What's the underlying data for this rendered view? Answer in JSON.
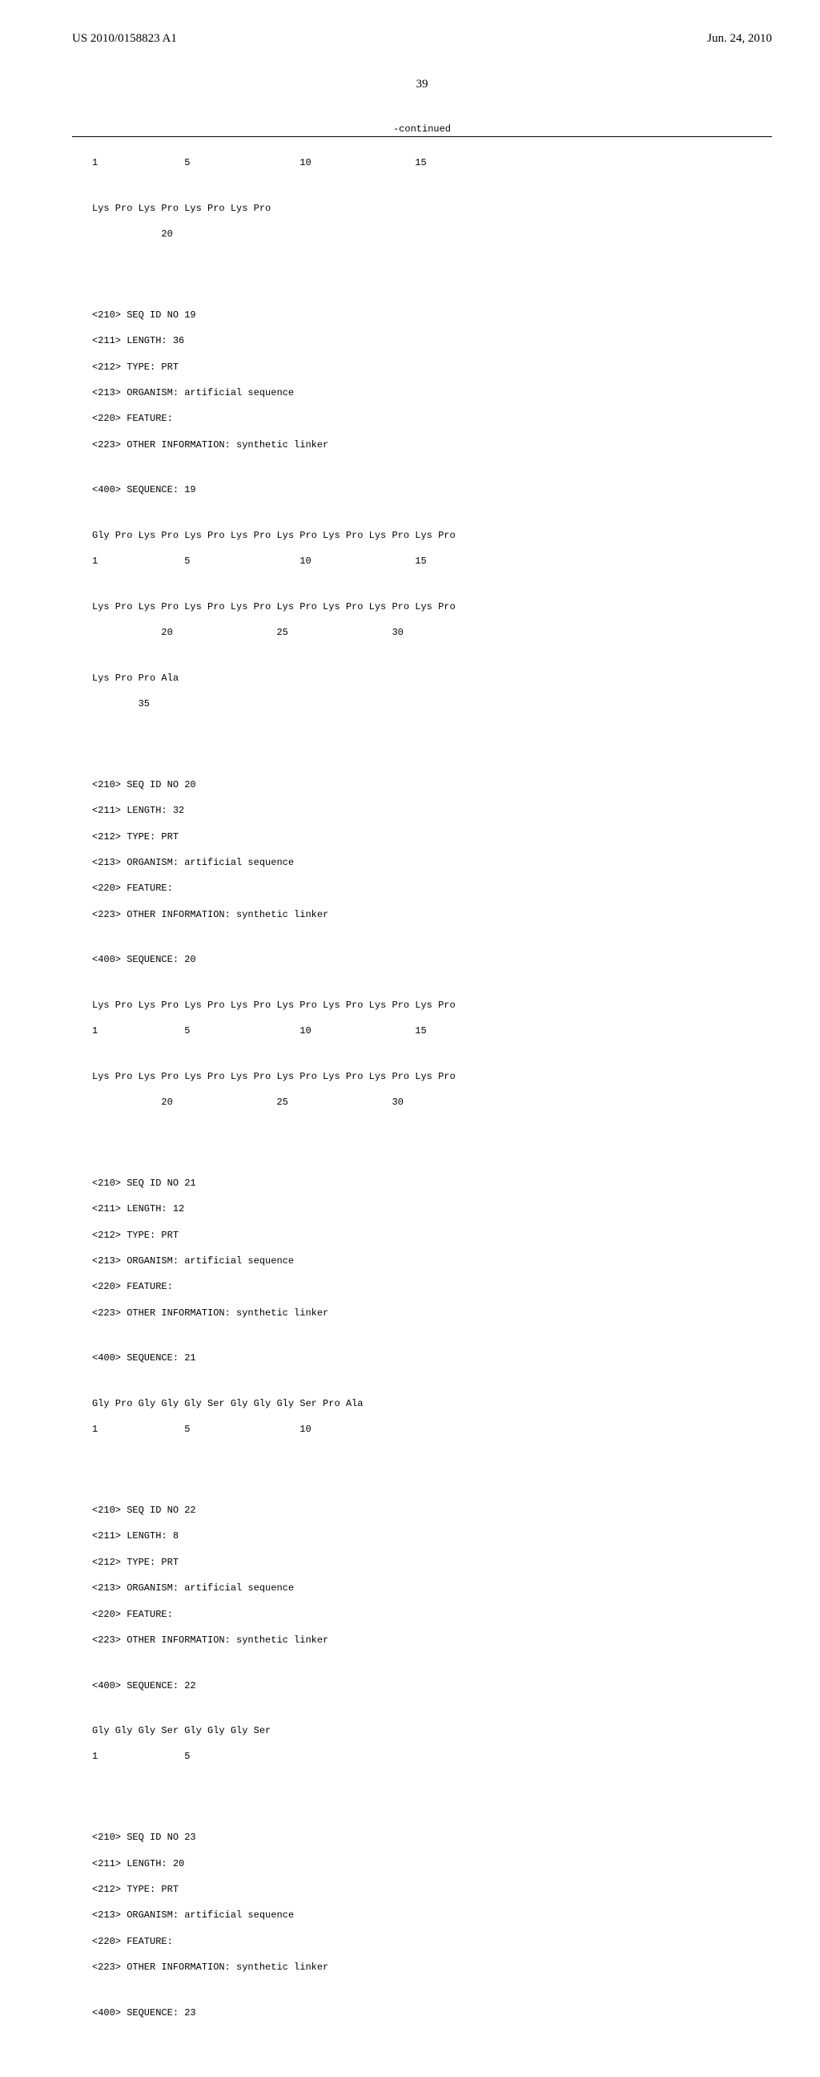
{
  "header": {
    "doc_number": "US 2010/0158823 A1",
    "date": "Jun. 24, 2010",
    "page_number": "39",
    "continued_label": "-continued"
  },
  "seq18_tail": {
    "pos_line": "1               5                   10                  15",
    "line2": "Lys Pro Lys Pro Lys Pro Lys Pro",
    "pos_line2": "            20"
  },
  "seq19": {
    "id": "<210> SEQ ID NO 19",
    "length": "<211> LENGTH: 36",
    "type": "<212> TYPE: PRT",
    "organism": "<213> ORGANISM: artificial sequence",
    "feature": "<220> FEATURE:",
    "other": "<223> OTHER INFORMATION: synthetic linker",
    "seq_label": "<400> SEQUENCE: 19",
    "line1": "Gly Pro Lys Pro Lys Pro Lys Pro Lys Pro Lys Pro Lys Pro Lys Pro",
    "pos1": "1               5                   10                  15",
    "line2": "Lys Pro Lys Pro Lys Pro Lys Pro Lys Pro Lys Pro Lys Pro Lys Pro",
    "pos2": "            20                  25                  30",
    "line3": "Lys Pro Pro Ala",
    "pos3": "        35"
  },
  "seq20": {
    "id": "<210> SEQ ID NO 20",
    "length": "<211> LENGTH: 32",
    "type": "<212> TYPE: PRT",
    "organism": "<213> ORGANISM: artificial sequence",
    "feature": "<220> FEATURE:",
    "other": "<223> OTHER INFORMATION: synthetic linker",
    "seq_label": "<400> SEQUENCE: 20",
    "line1": "Lys Pro Lys Pro Lys Pro Lys Pro Lys Pro Lys Pro Lys Pro Lys Pro",
    "pos1": "1               5                   10                  15",
    "line2": "Lys Pro Lys Pro Lys Pro Lys Pro Lys Pro Lys Pro Lys Pro Lys Pro",
    "pos2": "            20                  25                  30"
  },
  "seq21": {
    "id": "<210> SEQ ID NO 21",
    "length": "<211> LENGTH: 12",
    "type": "<212> TYPE: PRT",
    "organism": "<213> ORGANISM: artificial sequence",
    "feature": "<220> FEATURE:",
    "other": "<223> OTHER INFORMATION: synthetic linker",
    "seq_label": "<400> SEQUENCE: 21",
    "line1": "Gly Pro Gly Gly Gly Ser Gly Gly Gly Ser Pro Ala",
    "pos1": "1               5                   10"
  },
  "seq22": {
    "id": "<210> SEQ ID NO 22",
    "length": "<211> LENGTH: 8",
    "type": "<212> TYPE: PRT",
    "organism": "<213> ORGANISM: artificial sequence",
    "feature": "<220> FEATURE:",
    "other": "<223> OTHER INFORMATION: synthetic linker",
    "seq_label": "<400> SEQUENCE: 22",
    "line1": "Gly Gly Gly Ser Gly Gly Gly Ser",
    "pos1": "1               5"
  },
  "seq23": {
    "id": "<210> SEQ ID NO 23",
    "length": "<211> LENGTH: 20",
    "type": "<212> TYPE: PRT",
    "organism": "<213> ORGANISM: artificial sequence",
    "feature": "<220> FEATURE:",
    "other": "<223> OTHER INFORMATION: synthetic linker",
    "seq_label": "<400> SEQUENCE: 23"
  }
}
